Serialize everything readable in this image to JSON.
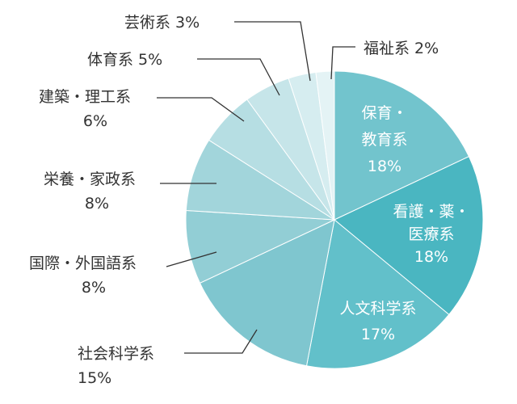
{
  "chart_data": {
    "type": "pie",
    "title": "",
    "categories": [
      "保育・教育系",
      "看護・薬・医療系",
      "人文科学系",
      "社会科学系",
      "国際・外国語系",
      "栄養・家政系",
      "建築・理工系",
      "体育系",
      "芸術系",
      "福祉系"
    ],
    "values": [
      18,
      18,
      17,
      15,
      8,
      8,
      6,
      5,
      3,
      2
    ],
    "labels": [
      {
        "name_lines": [
          "保育・",
          "教育系"
        ],
        "value": "18%"
      },
      {
        "name_lines": [
          "看護・薬・",
          "医療系"
        ],
        "value": "18%"
      },
      {
        "name_lines": [
          "人文科学系"
        ],
        "value": "17%"
      },
      {
        "name_lines": [
          "社会科学系"
        ],
        "value": "15%"
      },
      {
        "name_lines": [
          "国際・外国語系"
        ],
        "value": "8%"
      },
      {
        "name_lines": [
          "栄養・家政系"
        ],
        "value": "8%"
      },
      {
        "name_lines": [
          "建築・理工系"
        ],
        "value": "6%"
      },
      {
        "name_lines": [
          "体育系 5%"
        ],
        "value": ""
      },
      {
        "name_lines": [
          "芸術系 3%"
        ],
        "value": ""
      },
      {
        "name_lines": [
          "福祉系 2%"
        ],
        "value": ""
      }
    ],
    "colors": [
      "#72c4cd",
      "#4ab6c1",
      "#62c0ca",
      "#7fc6cf",
      "#92ced5",
      "#a2d5db",
      "#b6dee3",
      "#c6e5e9",
      "#d6edf0",
      "#e4f3f5"
    ],
    "legend": "none",
    "start_angle_deg": 0,
    "direction": "clockwise"
  }
}
